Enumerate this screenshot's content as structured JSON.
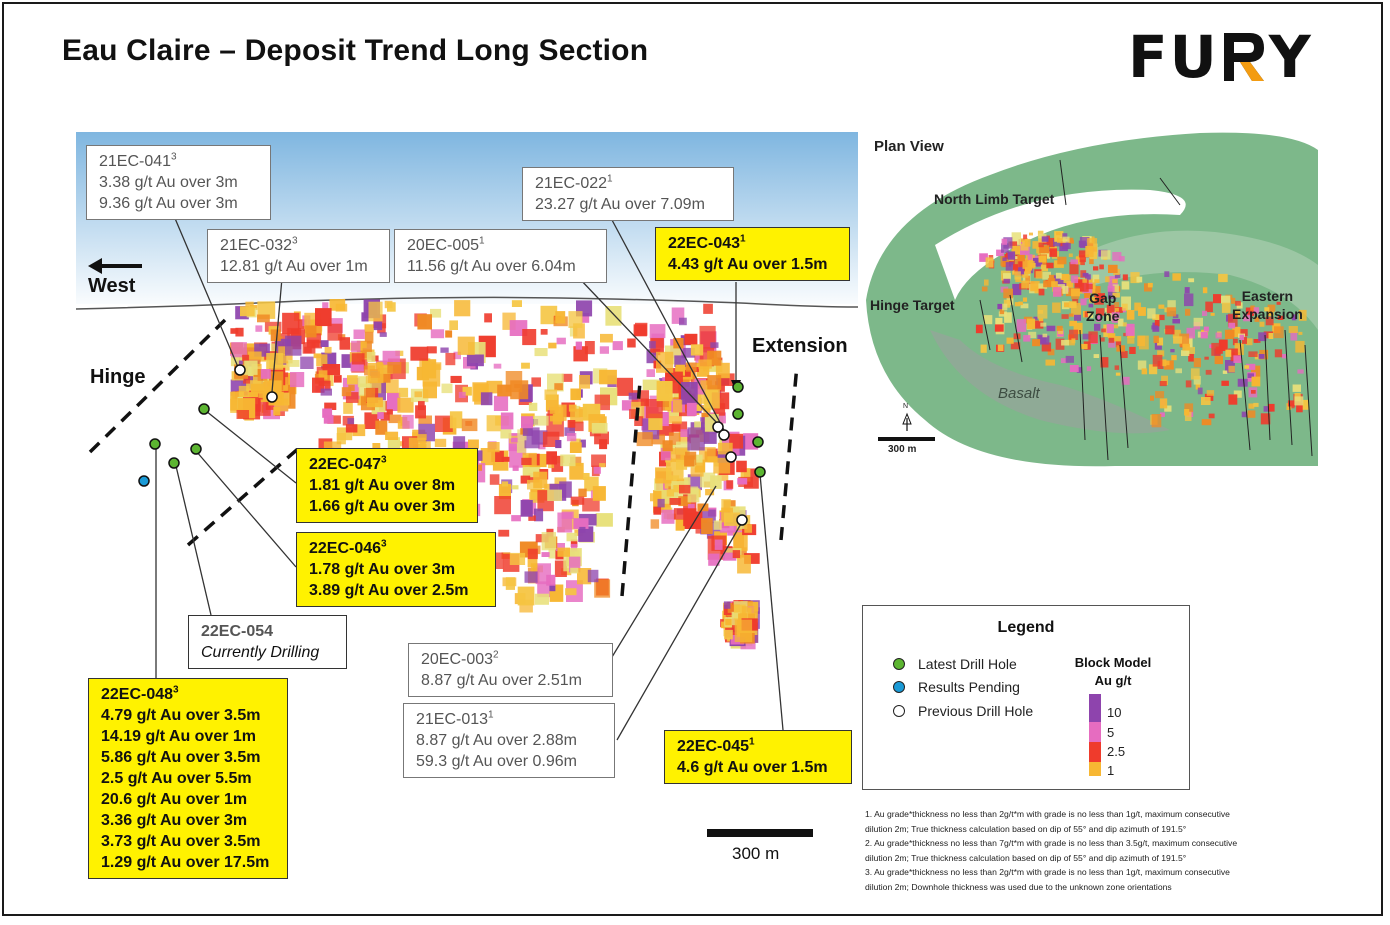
{
  "title": "Eau Claire –  Deposit Trend Long Section",
  "logo": {
    "left": "FU",
    "right": "Y"
  },
  "section_labels": {
    "west": "West",
    "hinge": "Hinge",
    "extension": "Extension"
  },
  "callouts": {
    "c21ec041": {
      "id": "21EC-041",
      "sup": "3",
      "lines": [
        "3.38 g/t Au over 3m",
        "9.36 g/t Au over 3m"
      ]
    },
    "c21ec032": {
      "id": "21EC-032",
      "sup": "3",
      "lines": [
        "12.81 g/t Au over 1m"
      ]
    },
    "c20ec005": {
      "id": "20EC-005",
      "sup": "1",
      "lines": [
        "11.56 g/t Au over 6.04m"
      ]
    },
    "c21ec022": {
      "id": "21EC-022",
      "sup": "1",
      "lines": [
        "23.27 g/t Au over 7.09m"
      ]
    },
    "c22ec043": {
      "id": "22EC-043",
      "sup": "1",
      "lines": [
        "4.43 g/t Au over 1.5m"
      ]
    },
    "c22ec047": {
      "id": "22EC-047",
      "sup": "3",
      "lines": [
        "1.81 g/t Au over 8m",
        "1.66 g/t Au over 3m"
      ]
    },
    "c22ec046": {
      "id": "22EC-046",
      "sup": "3",
      "lines": [
        "1.78 g/t Au over 3m",
        "3.89 g/t Au over 2.5m"
      ]
    },
    "c22ec054": {
      "id": "22EC-054",
      "sub": "Currently Drilling"
    },
    "c22ec048": {
      "id": "22EC-048",
      "sup": "3",
      "lines": [
        "4.79 g/t Au over 3.5m",
        "14.19 g/t Au over 1m",
        "5.86 g/t Au over 3.5m",
        "2.5 g/t Au over 5.5m",
        "20.6 g/t Au over 1m",
        "3.36 g/t Au over 3m",
        "3.73 g/t Au over 3.5m",
        "1.29 g/t Au over 17.5m"
      ]
    },
    "c20ec003": {
      "id": "20EC-003",
      "sup": "2",
      "lines": [
        "8.87 g/t Au over 2.51m"
      ]
    },
    "c21ec013": {
      "id": "21EC-013",
      "sup": "1",
      "lines": [
        "8.87 g/t Au over 2.88m",
        "59.3 g/t Au over 0.96m"
      ]
    },
    "c22ec045": {
      "id": "22EC-045",
      "sup": "1",
      "lines": [
        "4.6 g/t Au over 1.5m"
      ]
    }
  },
  "plan_view": {
    "title": "Plan View",
    "north_limb": "North Limb Target",
    "hinge_target": "Hinge Target",
    "gap_zone": [
      "Gap",
      "Zone"
    ],
    "eastern_expansion": [
      "Eastern",
      "Expansion"
    ],
    "basalt": "Basalt",
    "scale": "300 m",
    "north": "N"
  },
  "legend": {
    "title": "Legend",
    "items": [
      {
        "label": "Latest Drill Hole",
        "color": "#5cb531"
      },
      {
        "label": "Results Pending",
        "color": "#1a9ad6"
      },
      {
        "label": "Previous Drill Hole",
        "color": "#ffffff"
      }
    ],
    "block_model_title": [
      "Block Model",
      "Au g/t"
    ],
    "grades": [
      {
        "value": "10",
        "color": "#8e44ad"
      },
      {
        "value": "5",
        "color": "#e66cc0"
      },
      {
        "value": "2.5",
        "color": "#ef3b2c"
      },
      {
        "value": "1",
        "color": "#f7b733"
      }
    ]
  },
  "scale_bar": "300 m",
  "footnotes": [
    "1. Au grade*thickness no less than 2g/t*m with grade is no less than 1g/t, maximum consecutive",
    "dilution 2m; True thickness calculation based on dip of 55° and dip azimuth of 191.5°",
    "2. Au grade*thickness no less than 7g/t*m with grade is no less than 3.5g/t, maximum consecutive",
    "dilution 2m; True thickness calculation based on dip of 55° and dip azimuth of 191.5°",
    "3. Au grade*thickness no less than 2g/t*m with grade is no less than 1g/t, maximum consecutive",
    "dilution 2m; Downhole thickness was used due to the unknown zone orientations"
  ],
  "colors": {
    "sky_top": "#7fb6e0",
    "sky_bottom": "#ffffff",
    "highlight": "#fff200",
    "plan_green": "#7db88a",
    "logo_orange": "#f39c12"
  }
}
